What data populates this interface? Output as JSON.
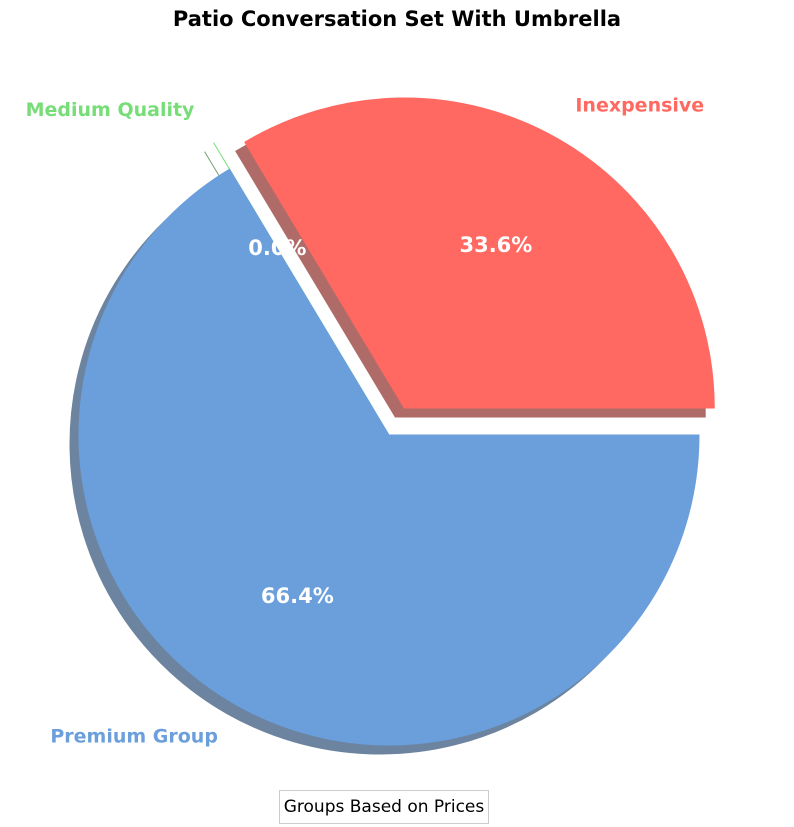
{
  "chart_data": {
    "type": "pie",
    "title": "Patio Conversation Set With Umbrella",
    "categories": [
      "Inexpensive",
      "Medium Quality",
      "Premium Group"
    ],
    "values": [
      33.6,
      0.0,
      66.4
    ],
    "percent_labels": [
      "33.6%",
      "0.0%",
      "66.4%"
    ],
    "colors": [
      "#ff6961",
      "#77dd77",
      "#6a9fdc"
    ],
    "exploded": [
      true,
      true,
      false
    ],
    "shadow": true,
    "start_angle_deg": 0,
    "direction": "counterclockwise",
    "legend_title": "Groups Based on Prices",
    "legend_placement": "bottom-center"
  }
}
